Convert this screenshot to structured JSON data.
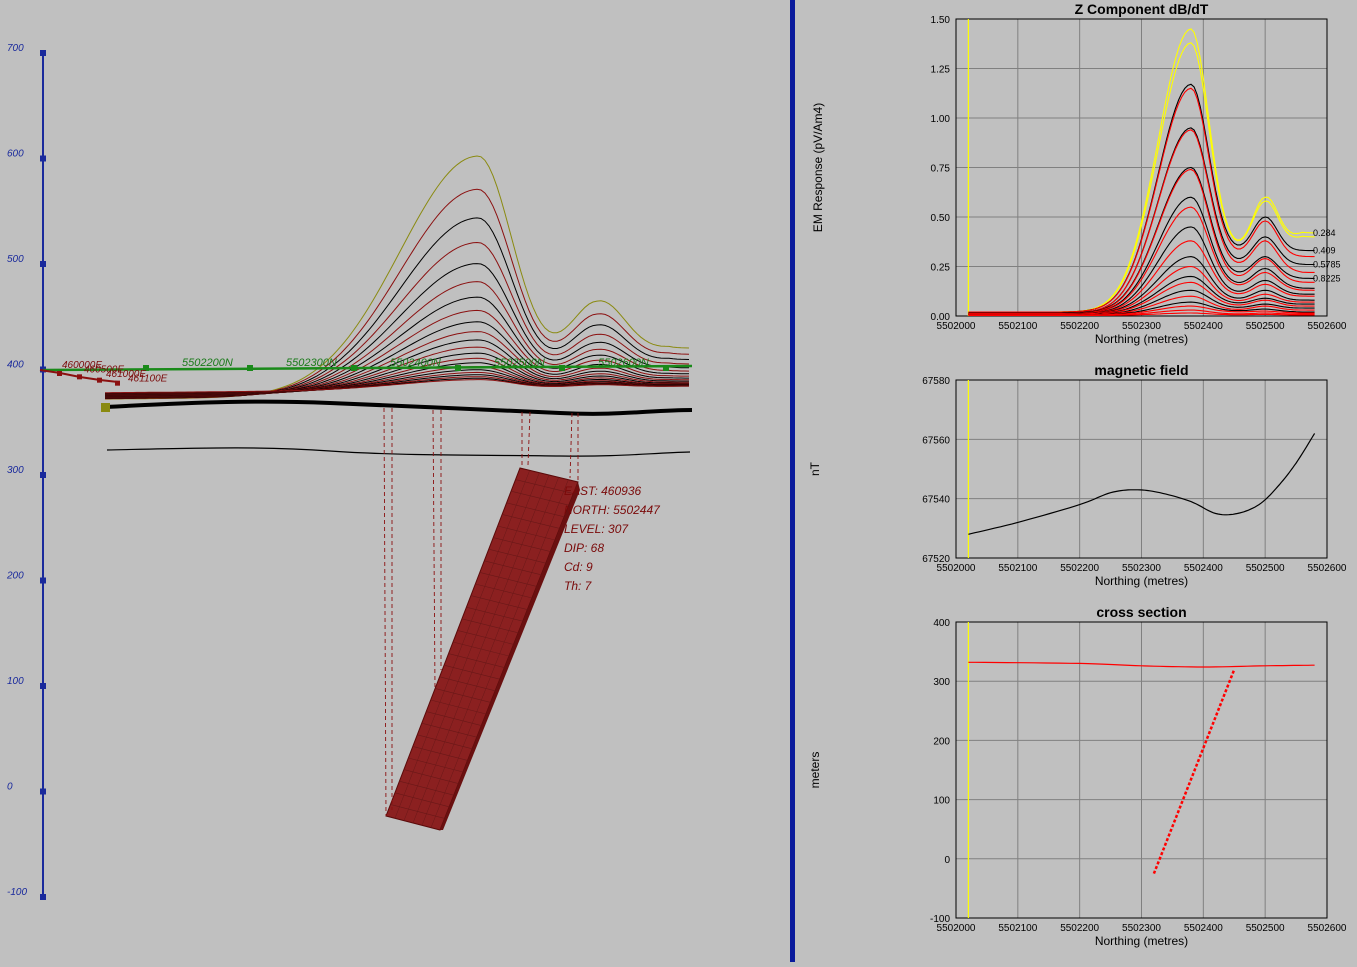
{
  "left_view": {
    "vertical_scale": {
      "ticks": [
        700,
        600,
        500,
        400,
        300,
        200,
        100,
        0,
        -100
      ]
    },
    "northing_labels": [
      "5502200N",
      "5502300N",
      "5502400N",
      "5502500N",
      "5502600N"
    ],
    "easting_labels": [
      "460000E",
      "460500E",
      "461000E",
      "461100E"
    ],
    "body_info": {
      "east": "EAST: 460936",
      "north": "NORTH: 5502447",
      "level": "LEVEL: 307",
      "dip": "DIP: 68",
      "cd": "Cd: 9",
      "th": "Th: 7"
    },
    "colors": {
      "profile_red": "#8b1010",
      "profile_black": "#000000",
      "profile_olive": "#8a8a10",
      "line_green": "#1a8a1a",
      "body_fill": "#8b2020",
      "scale_blue": "#1a2a9c"
    }
  },
  "chart_data": [
    {
      "type": "line",
      "title": "Z Component dB/dT",
      "xlabel": "Northing (metres)",
      "ylabel": "EM Response (pV/Am4)",
      "xlim": [
        5502000,
        5502600
      ],
      "ylim": [
        0,
        1.5
      ],
      "x_ticks": [
        "5502000",
        "5502100",
        "5502200",
        "5502300",
        "5502400",
        "5502500",
        "5502600"
      ],
      "y_ticks": [
        "0.00",
        "0.25",
        "0.50",
        "0.75",
        "1.00",
        "1.25",
        "1.50"
      ],
      "grid": true,
      "series_shape": {
        "x_start": 5502020,
        "x_end": 5502580,
        "x_peak": 5502380,
        "x_trough": 5502450,
        "x_peak2": 5502500
      },
      "series": [
        {
          "channel": "0.284",
          "color": "#ffff00",
          "peak": 1.45,
          "peak2": 0.6,
          "trough": 0.33,
          "end": 0.42,
          "start": 0.02
        },
        {
          "channel": "",
          "color": "#ffff00",
          "peak": 1.38,
          "peak2": 0.58,
          "trough": 0.33,
          "end": 0.4,
          "start": 0.02
        },
        {
          "channel": "0.409",
          "color": "#000000",
          "peak": 1.17,
          "peak2": 0.5,
          "trough": 0.32,
          "end": 0.33,
          "start": 0.02
        },
        {
          "channel": "",
          "color": "#ff0000",
          "peak": 1.15,
          "peak2": 0.48,
          "trough": 0.3,
          "end": 0.3,
          "start": 0.02
        },
        {
          "channel": "0.5785",
          "color": "#000000",
          "peak": 0.95,
          "peak2": 0.4,
          "trough": 0.26,
          "end": 0.26,
          "start": 0.015
        },
        {
          "channel": "",
          "color": "#ff0000",
          "peak": 0.94,
          "peak2": 0.38,
          "trough": 0.24,
          "end": 0.22,
          "start": 0.015
        },
        {
          "channel": "0.8225",
          "color": "#000000",
          "peak": 0.75,
          "peak2": 0.3,
          "trough": 0.2,
          "end": 0.19,
          "start": 0.015
        },
        {
          "channel": "",
          "color": "#ff0000",
          "peak": 0.74,
          "peak2": 0.29,
          "trough": 0.18,
          "end": 0.17,
          "start": 0.012
        },
        {
          "channel": "",
          "color": "#000000",
          "peak": 0.6,
          "peak2": 0.24,
          "trough": 0.15,
          "end": 0.14,
          "start": 0.012
        },
        {
          "channel": "",
          "color": "#ff0000",
          "peak": 0.55,
          "peak2": 0.22,
          "trough": 0.14,
          "end": 0.13,
          "start": 0.012
        },
        {
          "channel": "",
          "color": "#000000",
          "peak": 0.45,
          "peak2": 0.18,
          "trough": 0.11,
          "end": 0.11,
          "start": 0.01
        },
        {
          "channel": "",
          "color": "#ff0000",
          "peak": 0.38,
          "peak2": 0.16,
          "trough": 0.1,
          "end": 0.1,
          "start": 0.01
        },
        {
          "channel": "",
          "color": "#000000",
          "peak": 0.3,
          "peak2": 0.13,
          "trough": 0.08,
          "end": 0.08,
          "start": 0.01
        },
        {
          "channel": "",
          "color": "#ff0000",
          "peak": 0.25,
          "peak2": 0.11,
          "trough": 0.07,
          "end": 0.07,
          "start": 0.01
        },
        {
          "channel": "",
          "color": "#000000",
          "peak": 0.2,
          "peak2": 0.09,
          "trough": 0.06,
          "end": 0.06,
          "start": 0.008
        },
        {
          "channel": "",
          "color": "#ff0000",
          "peak": 0.17,
          "peak2": 0.08,
          "trough": 0.05,
          "end": 0.05,
          "start": 0.008
        },
        {
          "channel": "",
          "color": "#000000",
          "peak": 0.13,
          "peak2": 0.06,
          "trough": 0.04,
          "end": 0.04,
          "start": 0.006
        },
        {
          "channel": "",
          "color": "#ff0000",
          "peak": 0.1,
          "peak2": 0.05,
          "trough": 0.03,
          "end": 0.03,
          "start": 0.006
        },
        {
          "channel": "",
          "color": "#000000",
          "peak": 0.07,
          "peak2": 0.035,
          "trough": 0.025,
          "end": 0.02,
          "start": 0.005
        },
        {
          "channel": "",
          "color": "#ff0000",
          "peak": 0.05,
          "peak2": 0.025,
          "trough": 0.02,
          "end": 0.015,
          "start": 0.005
        },
        {
          "channel": "",
          "color": "#ff0000",
          "peak": 0.03,
          "peak2": 0.015,
          "trough": 0.01,
          "end": 0.01,
          "start": 0.004
        },
        {
          "channel": "",
          "color": "#ff0000",
          "peak": 0.015,
          "peak2": 0.008,
          "trough": 0.006,
          "end": 0.005,
          "start": 0.003
        }
      ]
    },
    {
      "type": "line",
      "title": "magnetic field",
      "xlabel": "Northing (metres)",
      "ylabel": "nT",
      "xlim": [
        5502000,
        5502600
      ],
      "ylim": [
        67520,
        67580
      ],
      "x_ticks": [
        "5502000",
        "5502100",
        "5502200",
        "5502300",
        "5502400",
        "5502500",
        "5502600"
      ],
      "y_ticks": [
        "67520",
        "67540",
        "67560",
        "67580"
      ],
      "grid": true,
      "series": [
        {
          "color": "#000000",
          "x": [
            5502020,
            5502100,
            5502200,
            5502250,
            5502290,
            5502330,
            5502380,
            5502420,
            5502455,
            5502490,
            5502520,
            5502550,
            5502580
          ],
          "y": [
            67528,
            67532,
            67538,
            67542,
            67543,
            67542,
            67539,
            67535,
            67535,
            67538,
            67544,
            67552,
            67562
          ]
        }
      ]
    },
    {
      "type": "line",
      "title": "cross section",
      "xlabel": "Northing (metres)",
      "ylabel": "meters",
      "xlim": [
        5502000,
        5502600
      ],
      "ylim": [
        -100,
        400
      ],
      "x_ticks": [
        "5502000",
        "5502100",
        "5502200",
        "5502300",
        "5502400",
        "5502500",
        "5502600"
      ],
      "y_ticks": [
        "-100",
        "0",
        "100",
        "200",
        "300",
        "400"
      ],
      "grid": true,
      "series": [
        {
          "color": "#ff0000",
          "style": "solid",
          "x": [
            5502020,
            5502200,
            5502300,
            5502400,
            5502500,
            5502580
          ],
          "y": [
            332,
            330,
            326,
            324,
            326,
            327
          ]
        },
        {
          "color": "#ff0000",
          "style": "dashed",
          "x": [
            5502320,
            5502450
          ],
          "y": [
            -25,
            320
          ]
        }
      ],
      "marker_line": {
        "x": 5502020,
        "color": "#ffff00"
      }
    }
  ]
}
